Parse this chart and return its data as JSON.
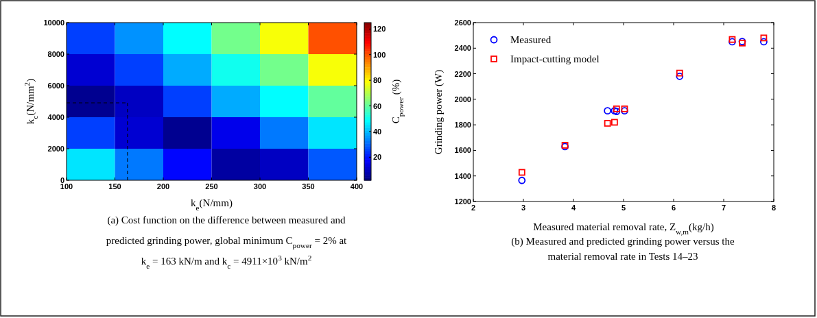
{
  "chart_data": [
    {
      "type": "heatmap",
      "xlabel": "k$_{e}$(N/mm)",
      "ylabel": "k$_{c}$(N/mm$^{2}$)",
      "clabel": "C$_{power}$ (%)",
      "xlim": [
        100,
        400
      ],
      "xticks": [
        100,
        150,
        200,
        250,
        300,
        350,
        400
      ],
      "ylim": [
        0,
        10000
      ],
      "yticks": [
        0,
        2000,
        4000,
        6000,
        8000,
        10000
      ],
      "cells": [
        [
          25,
          35,
          48,
          62,
          78,
          100
        ],
        [
          12,
          25,
          38,
          50,
          62,
          78
        ],
        [
          4,
          10,
          25,
          38,
          48,
          60
        ],
        [
          25,
          12,
          4,
          15,
          32,
          45
        ],
        [
          45,
          32,
          18,
          6,
          10,
          28
        ]
      ],
      "clim": [
        2,
        125
      ],
      "cticks": [
        20,
        40,
        60,
        80,
        100,
        120
      ],
      "ref_lines": [
        {
          "axis": "x",
          "value": 163,
          "line_style": "dashed"
        },
        {
          "axis": "y",
          "value": 4911,
          "line_style": "dashed"
        }
      ],
      "annotations": [
        "(a) Cost function on the difference between measured and",
        "predicted grinding power, global minimum  C$_{power}$ = 2%   at",
        "k$_{e}$ = 163 kN/m  and  k$_{c}$ = 4911×10$^{3}$ kN/m$^{2}$"
      ]
    },
    {
      "type": "scatter",
      "xlabel": "Measured material removal rate,  Z$_{w,m}$(kg/h)",
      "ylabel": "Grinding power (W)",
      "x": [
        2.97,
        3.83,
        4.68,
        4.82,
        4.86,
        5.02,
        6.12,
        7.17,
        7.37,
        7.8
      ],
      "xlim": [
        2,
        8
      ],
      "xticks": [
        2,
        3,
        4,
        5,
        6,
        7,
        8
      ],
      "ylim": [
        1200,
        2600
      ],
      "yticks": [
        1200,
        1400,
        1600,
        1800,
        2000,
        2200,
        2400,
        2600
      ],
      "legend": "top left",
      "grid": false,
      "series": [
        {
          "name": "Measured",
          "color": "#0000ff",
          "marker": "circle",
          "values": [
            1365,
            1630,
            1910,
            1910,
            1905,
            1910,
            2180,
            2450,
            2452,
            2450
          ]
        },
        {
          "name": "Impact-cutting model",
          "color": "#ff0000",
          "marker": "square",
          "values": [
            1428,
            1640,
            1812,
            1820,
            1925,
            1925,
            2205,
            2468,
            2440,
            2480
          ]
        }
      ],
      "annotations": [
        "(b) Measured and predicted grinding power versus the",
        "material removal rate in Tests 14–23"
      ]
    }
  ]
}
